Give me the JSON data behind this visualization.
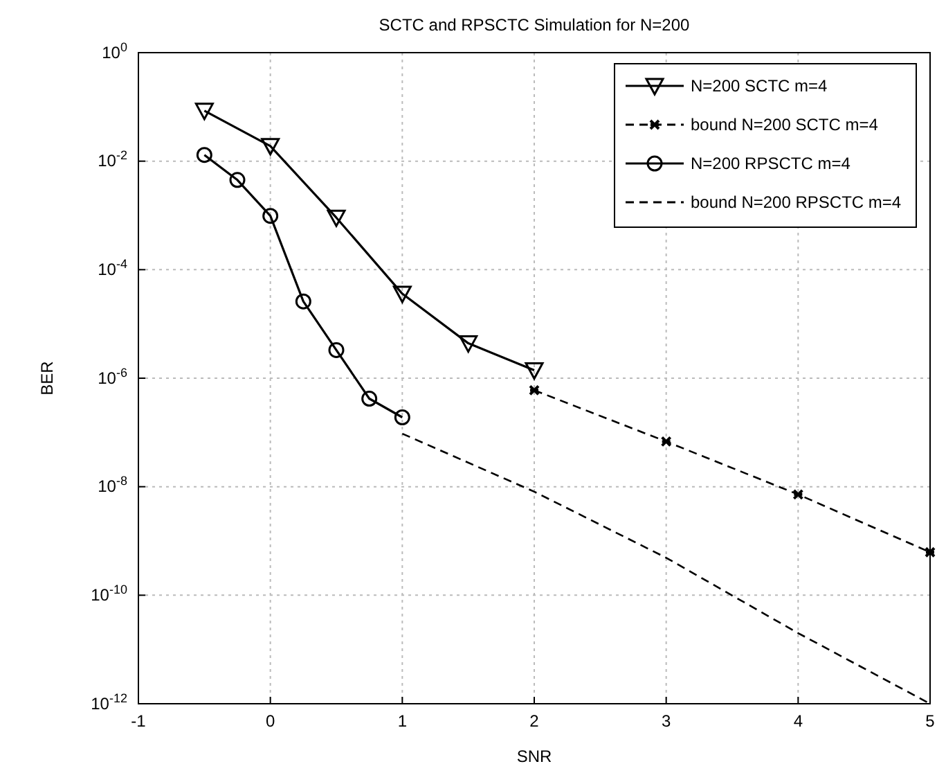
{
  "chart_data": {
    "type": "line",
    "title": "SCTC and RPSCTC Simulation for N=200",
    "xlabel": "SNR",
    "ylabel": "BER",
    "log": "y",
    "grid": true,
    "legend": "top right",
    "xlim": [
      -1,
      5
    ],
    "xticks": [
      -1,
      0,
      1,
      2,
      3,
      4,
      5
    ],
    "ylim": [
      1e-12,
      1
    ],
    "yticks": [
      {
        "value": 1,
        "label": "10$^{0}$"
      },
      {
        "value": 0.01,
        "label": "10$^{-2}$"
      },
      {
        "value": 0.0001,
        "label": "10$^{-4}$"
      },
      {
        "value": 1e-06,
        "label": "10$^{-6}$"
      },
      {
        "value": 1e-08,
        "label": "10$^{-8}$"
      },
      {
        "value": 1e-10,
        "label": "10$^{-10}$"
      },
      {
        "value": 1e-12,
        "label": "10$^{-12}$"
      }
    ],
    "series": [
      {
        "name": "N=200 SCTC m=4",
        "color": "#000000",
        "marker": "triangle",
        "line_style": "solid",
        "x": [
          -0.5,
          0,
          0.5,
          1,
          1.5,
          2
        ],
        "values": [
          0.085,
          0.019,
          0.00091,
          3.6e-05,
          4.4e-06,
          1.4e-06
        ]
      },
      {
        "name": "bound N=200 SCTC m=4",
        "color": "#000000",
        "marker": "cross",
        "line_style": "dashed",
        "x": [
          2,
          3,
          4,
          5
        ],
        "values": [
          6e-07,
          6.8e-08,
          7.2e-09,
          6.2e-10
        ]
      },
      {
        "name": "N=200 RPSCTC m=4",
        "color": "#000000",
        "marker": "circle",
        "line_style": "solid",
        "x": [
          -0.5,
          -0.25,
          0,
          0.25,
          0.5,
          0.75,
          1
        ],
        "values": [
          0.013,
          0.0045,
          0.00098,
          2.6e-05,
          3.3e-06,
          4.2e-07,
          1.9e-07
        ]
      },
      {
        "name": "bound N=200 RPSCTC m=4",
        "color": "#000000",
        "marker": "none",
        "line_style": "dashed",
        "x": [
          1,
          2,
          3,
          4,
          5
        ],
        "values": [
          9.5e-08,
          8.1e-09,
          4.9e-10,
          2e-11,
          1e-12
        ]
      }
    ]
  }
}
